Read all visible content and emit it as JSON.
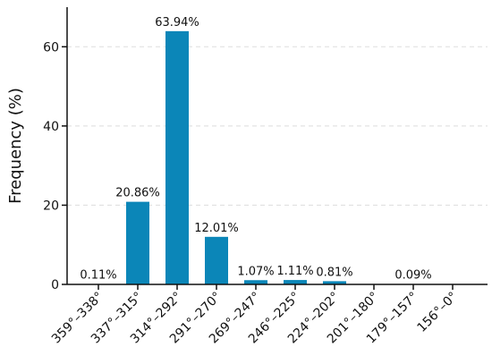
{
  "chart_data": {
    "type": "bar",
    "ylabel": "Frequency (%)",
    "xlabel": "",
    "categories": [
      "359°–338°",
      "337°–315°",
      "314°–292°",
      "291°–270°",
      "269°–247°",
      "246°–225°",
      "224°–202°",
      "201°–180°",
      "179°–157°",
      "156°–0°"
    ],
    "values": [
      0.11,
      20.86,
      63.94,
      12.01,
      1.07,
      1.11,
      0.81,
      0,
      0.09,
      0
    ],
    "data_labels": [
      "0.11%",
      "20.86%",
      "63.94%",
      "12.01%",
      "1.07%",
      "1.11%",
      "0.81%",
      "",
      "0.09%",
      ""
    ],
    "ylim": [
      0,
      70
    ],
    "yticks": [
      0,
      20,
      40,
      60
    ],
    "ytick_labels": [
      "0",
      "20",
      "40",
      "60"
    ],
    "grid": "horizontal dashed",
    "bar_color": "#0b86b8",
    "grid_color": "#dddddd",
    "axis_color": "#111111"
  }
}
